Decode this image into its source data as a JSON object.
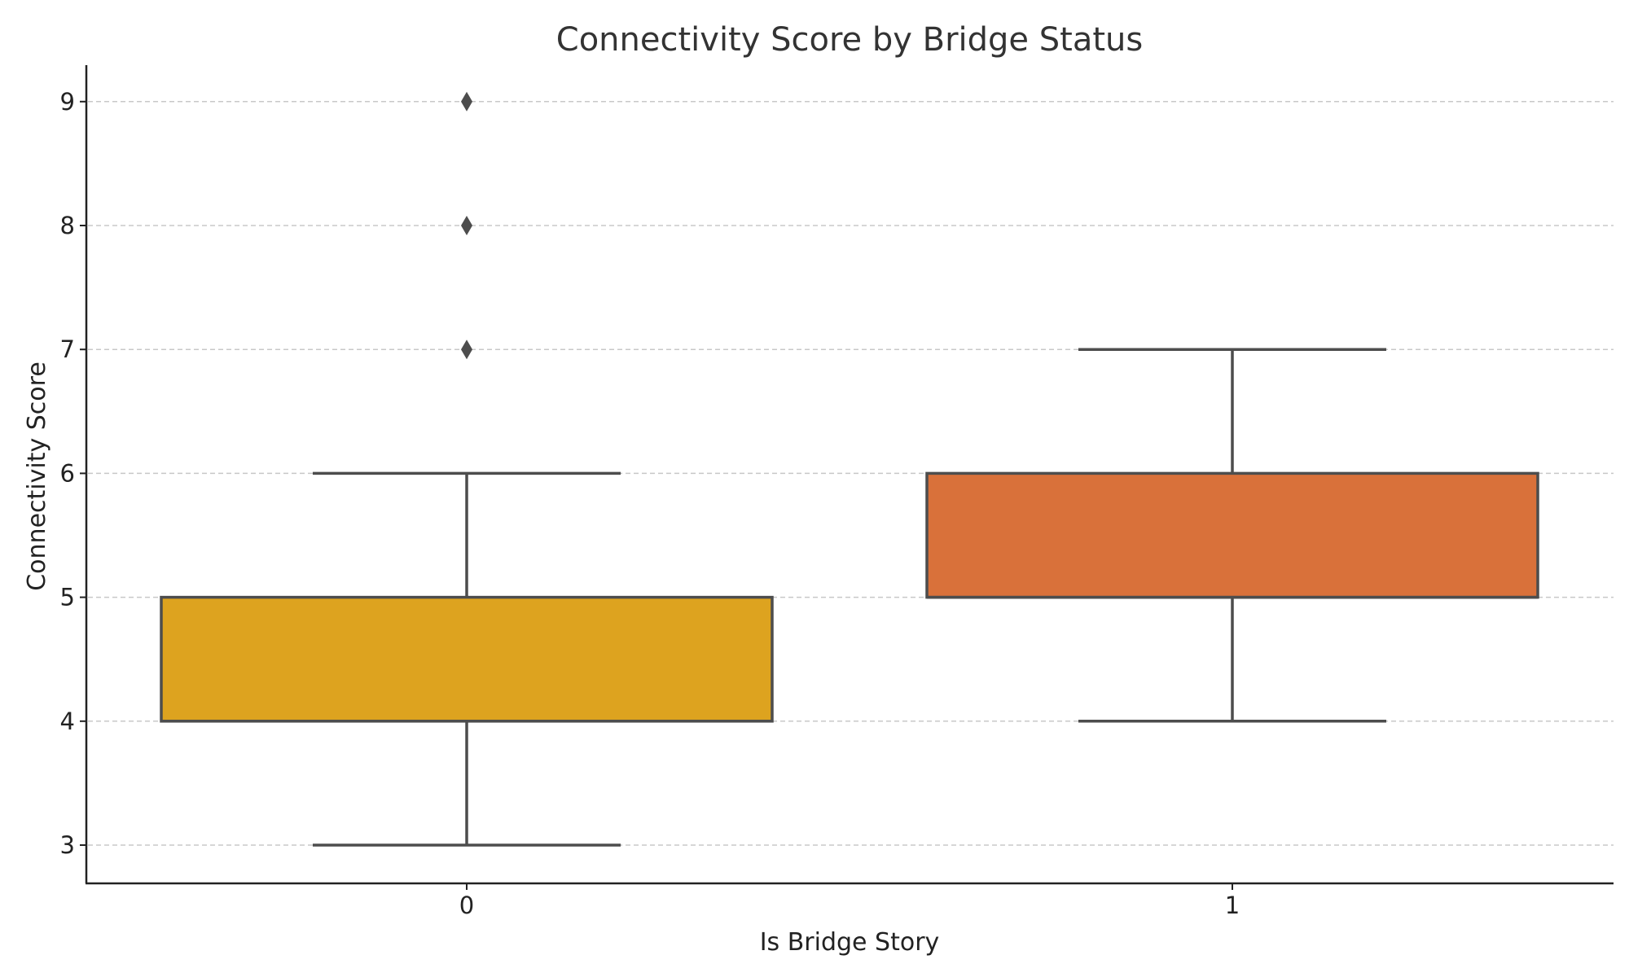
{
  "chart_data": {
    "type": "box",
    "title": "Connectivity Score by Bridge Status",
    "xlabel": "Is Bridge Story",
    "ylabel": "Connectivity Score",
    "categories": [
      "0",
      "1"
    ],
    "ylim": [
      2.7,
      9.3
    ],
    "yticks": [
      3,
      4,
      5,
      6,
      7,
      8,
      9
    ],
    "grid": "y-dashed",
    "legend": null,
    "series": [
      {
        "category": "0",
        "color": "#DDA31F",
        "whisker_low": 3,
        "q1": 4,
        "median": 4,
        "q3": 5,
        "whisker_high": 6,
        "outliers": [
          7,
          8,
          9
        ]
      },
      {
        "category": "1",
        "color": "#D9713A",
        "whisker_low": 4,
        "q1": 5,
        "median": 5,
        "q3": 6,
        "whisker_high": 7,
        "outliers": []
      }
    ]
  }
}
